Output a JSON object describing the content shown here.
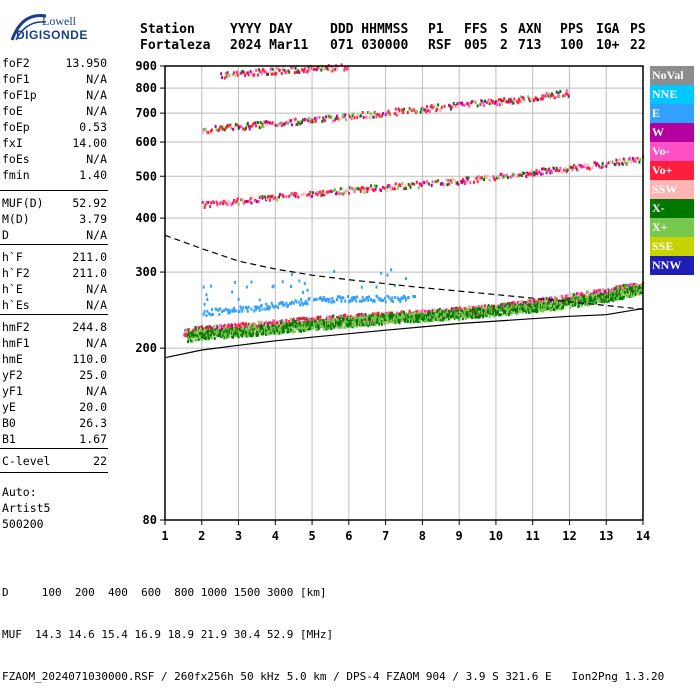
{
  "logo": {
    "top": "Lowell",
    "bottom": "DIGISONDE"
  },
  "header": {
    "line1": [
      "Station",
      "YYYY DAY",
      "DDD HHMMSS",
      "P1",
      "FFS",
      "S",
      "AXN",
      "PPS",
      "IGA",
      "PS"
    ],
    "line2": [
      "Fortaleza",
      "2024 Mar11",
      "071 030000",
      "RSF",
      "005",
      "2",
      "713",
      "100",
      "10+",
      "22"
    ]
  },
  "params": [
    {
      "name": "foF2",
      "value": "13.950"
    },
    {
      "name": "foF1",
      "value": "N/A"
    },
    {
      "name": "foF1p",
      "value": "N/A"
    },
    {
      "name": "foE",
      "value": "N/A"
    },
    {
      "name": "foEp",
      "value": "0.53"
    },
    {
      "name": "fxI",
      "value": "14.00"
    },
    {
      "name": "foEs",
      "value": "N/A"
    },
    {
      "name": "fmin",
      "value": "1.40"
    },
    {
      "name": "MUF(D)",
      "value": "52.92"
    },
    {
      "name": "M(D)",
      "value": "3.79"
    },
    {
      "name": "D",
      "value": "N/A"
    },
    {
      "name": "h`F",
      "value": "211.0"
    },
    {
      "name": "h`F2",
      "value": "211.0"
    },
    {
      "name": "h`E",
      "value": "N/A"
    },
    {
      "name": "h`Es",
      "value": "N/A"
    },
    {
      "name": "hmF2",
      "value": "244.8"
    },
    {
      "name": "hmF1",
      "value": "N/A"
    },
    {
      "name": "hmE",
      "value": "110.0"
    },
    {
      "name": "yF2",
      "value": "25.0"
    },
    {
      "name": "yF1",
      "value": "N/A"
    },
    {
      "name": "yE",
      "value": "20.0"
    },
    {
      "name": "B0",
      "value": "26.3"
    },
    {
      "name": "B1",
      "value": "1.67"
    },
    {
      "name": "C-level",
      "value": "22"
    }
  ],
  "autoscaling": {
    "line1": "Auto:",
    "line2": "Artist5",
    "line3": "500200"
  },
  "legend": [
    {
      "label": "NoVal",
      "color": "#8c8c8c"
    },
    {
      "label": "NNE",
      "color": "#00c8ff"
    },
    {
      "label": "E",
      "color": "#32a0ff"
    },
    {
      "label": "W",
      "color": "#b4009c"
    },
    {
      "label": "Vo-",
      "color": "#ff50c8"
    },
    {
      "label": "Vo+",
      "color": "#ff1e3c"
    },
    {
      "label": "SSW",
      "color": "#ffb4b4"
    },
    {
      "label": "X-",
      "color": "#007800"
    },
    {
      "label": "X+",
      "color": "#78c850"
    },
    {
      "label": "SSE",
      "color": "#c8d200"
    },
    {
      "label": "NNW",
      "color": "#1e1eb4"
    }
  ],
  "footer": {
    "d_label": "D",
    "d_values": "100  200  400  600  800 1000 1500 3000 [km]",
    "muf_label": "MUF",
    "muf_values": "14.3 14.6 15.4 16.9 18.9 21.9 30.4 52.9 [MHz]",
    "file_line": "FZAOM_2024071030000.RSF / 260fx256h 50 kHz 5.0 km / DPS-4 FZAOM 904 / 3.9 S 321.6 E   Ion2Png 1.3.20"
  },
  "chart_data": {
    "type": "scatter",
    "xlim": [
      1,
      14
    ],
    "ylim": [
      80,
      900
    ],
    "yscale": "log",
    "x_ticks": [
      1,
      2,
      3,
      4,
      5,
      6,
      7,
      8,
      9,
      10,
      11,
      12,
      13,
      14
    ],
    "y_ticks": [
      80,
      200,
      300,
      400,
      500,
      600,
      700,
      800,
      900
    ],
    "grid": true,
    "traces": [
      {
        "name": "o-trace",
        "color": "#ff1e3c",
        "points": [
          [
            1.5,
            218
          ],
          [
            2,
            221
          ],
          [
            3,
            224
          ],
          [
            4,
            228
          ],
          [
            5,
            232
          ],
          [
            6,
            235
          ],
          [
            7,
            238
          ],
          [
            8,
            241
          ],
          [
            9,
            244
          ],
          [
            10,
            248
          ],
          [
            11,
            255
          ],
          [
            12,
            262
          ],
          [
            13,
            270
          ],
          [
            14,
            282
          ]
        ]
      },
      {
        "name": "x-trace",
        "color": "#78c850",
        "points": [
          [
            1.6,
            213
          ],
          [
            2,
            216
          ],
          [
            3,
            219
          ],
          [
            4,
            223
          ],
          [
            5,
            227
          ],
          [
            6,
            231
          ],
          [
            7,
            235
          ],
          [
            8,
            238
          ],
          [
            9,
            241
          ],
          [
            10,
            245
          ],
          [
            11,
            250
          ],
          [
            12,
            256
          ],
          [
            13,
            264
          ],
          [
            14,
            276
          ]
        ]
      },
      {
        "name": "oblique-echo",
        "color": "#32a0ff",
        "points": [
          [
            2,
            243
          ],
          [
            3,
            247
          ],
          [
            4,
            253
          ],
          [
            5,
            260
          ],
          [
            6,
            262
          ],
          [
            7,
            262
          ],
          [
            7.8,
            262
          ]
        ]
      },
      {
        "name": "second-hop",
        "color": "#ff1e3c",
        "points": [
          [
            2,
            432
          ],
          [
            3,
            440
          ],
          [
            4,
            450
          ],
          [
            5,
            458
          ],
          [
            6,
            467
          ],
          [
            7,
            475
          ],
          [
            8,
            482
          ],
          [
            9,
            491
          ],
          [
            10,
            502
          ],
          [
            11,
            513
          ],
          [
            12,
            526
          ],
          [
            13,
            538
          ],
          [
            14,
            553
          ]
        ]
      },
      {
        "name": "third-hop",
        "color": "#ff1e3c",
        "points": [
          [
            2,
            643
          ],
          [
            3,
            655
          ],
          [
            4,
            668
          ],
          [
            5,
            680
          ],
          [
            6,
            693
          ],
          [
            7,
            706
          ],
          [
            8,
            720
          ],
          [
            9,
            735
          ],
          [
            10,
            748
          ],
          [
            11,
            765
          ],
          [
            12,
            785
          ]
        ]
      },
      {
        "name": "fourth-hop",
        "color": "#ff1e3c",
        "points": [
          [
            2.5,
            862
          ],
          [
            3,
            872
          ],
          [
            4,
            883
          ],
          [
            5,
            893
          ],
          [
            6,
            900
          ]
        ]
      }
    ],
    "profile_solid": [
      [
        1,
        190
      ],
      [
        2,
        198
      ],
      [
        3,
        203
      ],
      [
        4,
        208
      ],
      [
        5,
        212
      ],
      [
        6,
        216
      ],
      [
        7,
        220
      ],
      [
        8,
        224
      ],
      [
        9,
        228
      ],
      [
        10,
        231
      ],
      [
        11,
        234
      ],
      [
        12,
        237
      ],
      [
        13,
        239
      ],
      [
        14,
        247
      ]
    ],
    "profile_dashed": [
      [
        1,
        365
      ],
      [
        2,
        340
      ],
      [
        3,
        318
      ],
      [
        4,
        305
      ],
      [
        5,
        295
      ],
      [
        6,
        288
      ],
      [
        7,
        282
      ],
      [
        8,
        276
      ],
      [
        9,
        271
      ],
      [
        10,
        266
      ],
      [
        11,
        261
      ],
      [
        12,
        256
      ],
      [
        13,
        251
      ],
      [
        14,
        246
      ]
    ]
  }
}
